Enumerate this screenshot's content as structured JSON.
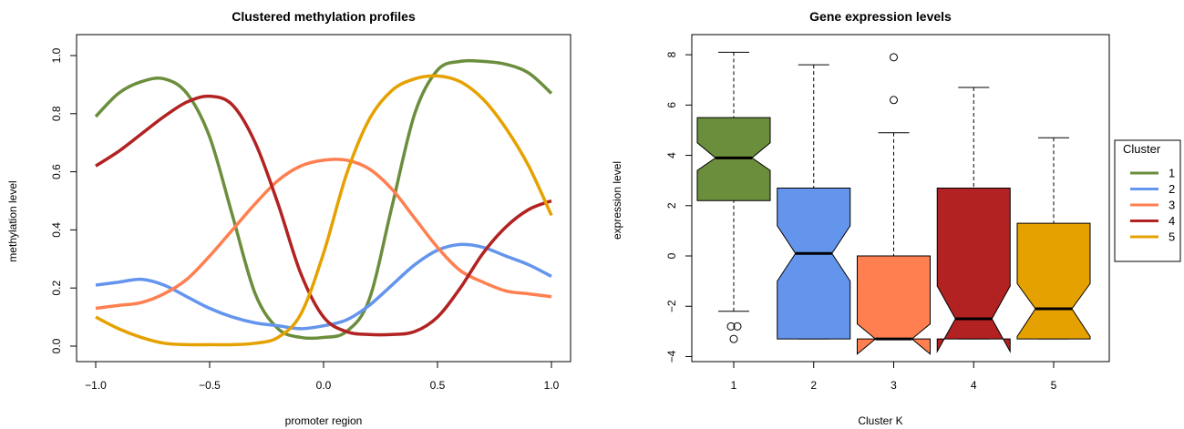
{
  "chart_data": [
    {
      "type": "line",
      "title": "Clustered methylation profiles",
      "xlabel": "promoter region",
      "ylabel": "methylation level",
      "xlim": [
        -1.0,
        1.0
      ],
      "ylim": [
        0.0,
        1.0
      ],
      "xticks": [
        "−1.0",
        "−0.5",
        "0.0",
        "0.5",
        "1.0"
      ],
      "yticks": [
        "0.0",
        "0.2",
        "0.4",
        "0.6",
        "0.8",
        "1.0"
      ],
      "x": [
        -1.0,
        -0.9,
        -0.8,
        -0.7,
        -0.6,
        -0.5,
        -0.4,
        -0.3,
        -0.2,
        -0.1,
        0.0,
        0.1,
        0.2,
        0.3,
        0.4,
        0.5,
        0.6,
        0.7,
        0.8,
        0.9,
        1.0
      ],
      "series": [
        {
          "name": "1",
          "color": "#6B8E3D",
          "values": [
            0.79,
            0.87,
            0.91,
            0.92,
            0.87,
            0.72,
            0.45,
            0.18,
            0.06,
            0.03,
            0.03,
            0.05,
            0.16,
            0.48,
            0.8,
            0.95,
            0.98,
            0.98,
            0.97,
            0.94,
            0.87
          ]
        },
        {
          "name": "2",
          "color": "#6495ED",
          "values": [
            0.21,
            0.22,
            0.23,
            0.21,
            0.17,
            0.13,
            0.1,
            0.08,
            0.07,
            0.06,
            0.07,
            0.09,
            0.14,
            0.21,
            0.28,
            0.33,
            0.35,
            0.34,
            0.31,
            0.28,
            0.24
          ]
        },
        {
          "name": "3",
          "color": "#FF7F50",
          "values": [
            0.13,
            0.14,
            0.15,
            0.18,
            0.23,
            0.31,
            0.4,
            0.49,
            0.57,
            0.62,
            0.64,
            0.64,
            0.61,
            0.54,
            0.44,
            0.34,
            0.26,
            0.22,
            0.19,
            0.18,
            0.17
          ]
        },
        {
          "name": "4",
          "color": "#B22222",
          "values": [
            0.62,
            0.67,
            0.73,
            0.79,
            0.84,
            0.86,
            0.83,
            0.7,
            0.49,
            0.25,
            0.1,
            0.05,
            0.04,
            0.04,
            0.05,
            0.1,
            0.2,
            0.32,
            0.41,
            0.47,
            0.5
          ]
        },
        {
          "name": "5",
          "color": "#E5A100",
          "values": [
            0.1,
            0.06,
            0.03,
            0.01,
            0.005,
            0.005,
            0.005,
            0.01,
            0.03,
            0.11,
            0.32,
            0.59,
            0.78,
            0.88,
            0.92,
            0.93,
            0.91,
            0.85,
            0.75,
            0.62,
            0.45
          ]
        }
      ]
    },
    {
      "type": "box",
      "title": "Gene expression levels",
      "xlabel": "Cluster K",
      "ylabel": "expression level",
      "ylim": [
        -4.2,
        8.8
      ],
      "yticks": [
        -4,
        -2,
        0,
        2,
        4,
        6,
        8
      ],
      "ytick_labels": [
        "−4",
        "−2",
        "0",
        "2",
        "4",
        "6",
        "8"
      ],
      "categories": [
        "1",
        "2",
        "3",
        "4",
        "5"
      ],
      "notched": true,
      "boxes": [
        {
          "category": "1",
          "color": "#6B8E3D",
          "lower_whisker": -2.2,
          "q1": 2.2,
          "median": 3.9,
          "q3": 5.5,
          "upper_whisker": 8.1,
          "notch_low": 3.4,
          "notch_high": 4.5,
          "outliers": [
            -2.8,
            -2.8,
            -3.3
          ]
        },
        {
          "category": "2",
          "color": "#6495ED",
          "lower_whisker": -3.3,
          "q1": -3.3,
          "median": 0.1,
          "q3": 2.7,
          "upper_whisker": 7.6,
          "notch_low": -1.0,
          "notch_high": 1.2,
          "outliers": []
        },
        {
          "category": "3",
          "color": "#FF7F50",
          "lower_whisker": -3.3,
          "q1": -3.3,
          "median": -3.3,
          "q3": 0.0,
          "upper_whisker": 4.9,
          "notch_low": -3.9,
          "notch_high": -2.7,
          "outliers": [
            6.2,
            7.9
          ]
        },
        {
          "category": "4",
          "color": "#B22222",
          "lower_whisker": -3.3,
          "q1": -3.3,
          "median": -2.5,
          "q3": 2.7,
          "upper_whisker": 6.7,
          "notch_low": -3.8,
          "notch_high": -1.2,
          "outliers": []
        },
        {
          "category": "5",
          "color": "#E5A100",
          "lower_whisker": -3.3,
          "q1": -3.3,
          "median": -2.1,
          "q3": 1.3,
          "upper_whisker": 4.7,
          "notch_low": -3.2,
          "notch_high": -1.1,
          "outliers": []
        }
      ],
      "legend": {
        "title": "Cluster",
        "placement": "right",
        "entries": [
          {
            "label": "1",
            "color": "#6B8E3D"
          },
          {
            "label": "2",
            "color": "#6495ED"
          },
          {
            "label": "3",
            "color": "#FF7F50"
          },
          {
            "label": "4",
            "color": "#B22222"
          },
          {
            "label": "5",
            "color": "#E5A100"
          }
        ]
      }
    }
  ]
}
